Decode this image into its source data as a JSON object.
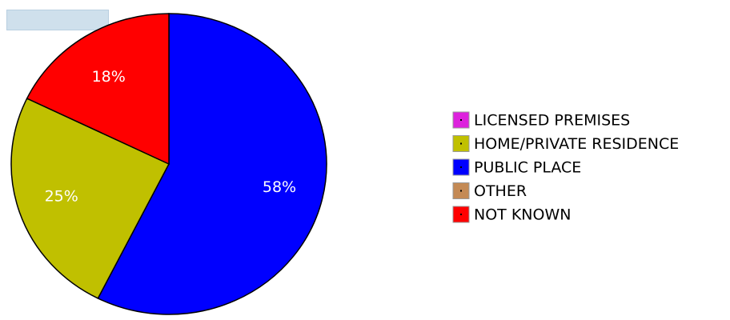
{
  "chart_data": {
    "type": "pie",
    "title": "",
    "slices": [
      {
        "name": "LICENSED PREMISES",
        "value": 0,
        "label": "",
        "color": "#dd22dd"
      },
      {
        "name": "HOME/PRIVATE RESIDENCE",
        "value": 25,
        "label": "25%",
        "color": "#c0c000"
      },
      {
        "name": "PUBLIC PLACE",
        "value": 58,
        "label": "58%",
        "color": "#0000ff"
      },
      {
        "name": "OTHER",
        "value": 0,
        "label": "",
        "color": "#c48a55"
      },
      {
        "name": "NOT KNOWN",
        "value": 18,
        "label": "18%",
        "color": "#ff0000"
      }
    ],
    "drawing_order": [
      2,
      1,
      4
    ],
    "legend_position": "right"
  }
}
